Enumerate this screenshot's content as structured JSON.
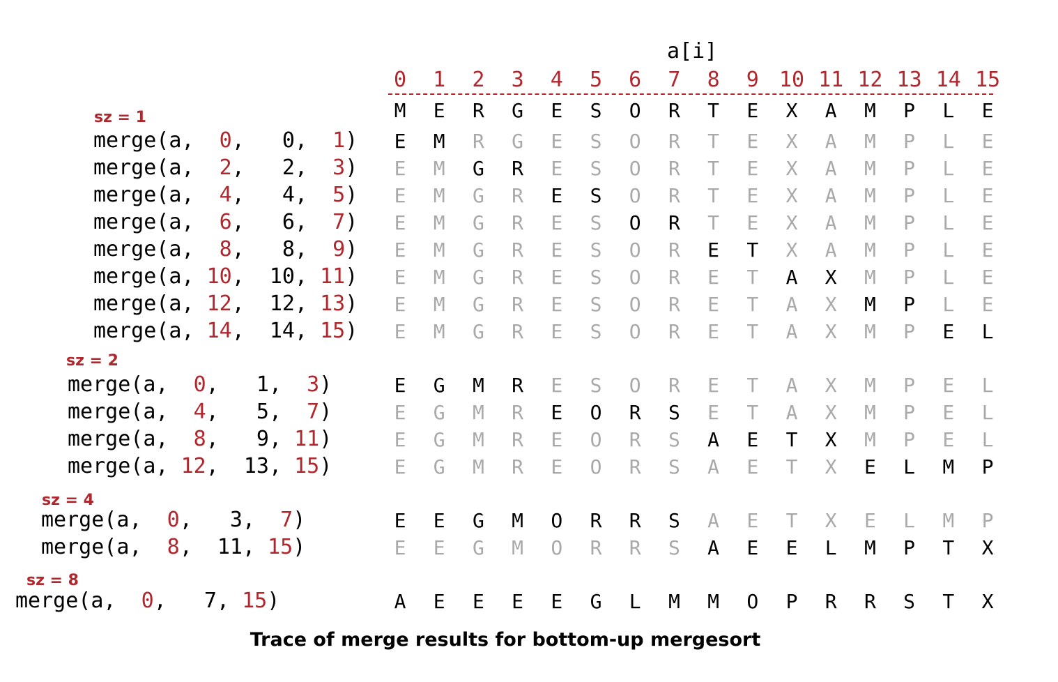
{
  "header": {
    "title": "a[i]",
    "indices": [
      "0",
      "1",
      "2",
      "3",
      "4",
      "5",
      "6",
      "7",
      "8",
      "9",
      "10",
      "11",
      "12",
      "13",
      "14",
      "15"
    ]
  },
  "initial": [
    "M",
    "E",
    "R",
    "G",
    "E",
    "S",
    "O",
    "R",
    "T",
    "E",
    "X",
    "A",
    "M",
    "P",
    "L",
    "E"
  ],
  "groups": [
    {
      "label": "sz = 1",
      "rows": [
        {
          "call": {
            "prefix": "merge(a, ",
            "lo": " 0",
            "mid": "  0",
            "hi": " 1"
          },
          "cells": [
            "E",
            "M",
            "R",
            "G",
            "E",
            "S",
            "O",
            "R",
            "T",
            "E",
            "X",
            "A",
            "M",
            "P",
            "L",
            "E"
          ],
          "active": [
            0,
            1
          ]
        },
        {
          "call": {
            "prefix": "merge(a, ",
            "lo": " 2",
            "mid": "  2",
            "hi": " 3"
          },
          "cells": [
            "E",
            "M",
            "G",
            "R",
            "E",
            "S",
            "O",
            "R",
            "T",
            "E",
            "X",
            "A",
            "M",
            "P",
            "L",
            "E"
          ],
          "active": [
            2,
            3
          ]
        },
        {
          "call": {
            "prefix": "merge(a, ",
            "lo": " 4",
            "mid": "  4",
            "hi": " 5"
          },
          "cells": [
            "E",
            "M",
            "G",
            "R",
            "E",
            "S",
            "O",
            "R",
            "T",
            "E",
            "X",
            "A",
            "M",
            "P",
            "L",
            "E"
          ],
          "active": [
            4,
            5
          ]
        },
        {
          "call": {
            "prefix": "merge(a, ",
            "lo": " 6",
            "mid": "  6",
            "hi": " 7"
          },
          "cells": [
            "E",
            "M",
            "G",
            "R",
            "E",
            "S",
            "O",
            "R",
            "T",
            "E",
            "X",
            "A",
            "M",
            "P",
            "L",
            "E"
          ],
          "active": [
            6,
            7
          ]
        },
        {
          "call": {
            "prefix": "merge(a, ",
            "lo": " 8",
            "mid": "  8",
            "hi": " 9"
          },
          "cells": [
            "E",
            "M",
            "G",
            "R",
            "E",
            "S",
            "O",
            "R",
            "E",
            "T",
            "X",
            "A",
            "M",
            "P",
            "L",
            "E"
          ],
          "active": [
            8,
            9
          ]
        },
        {
          "call": {
            "prefix": "merge(a, ",
            "lo": "10",
            "mid": " 10",
            "hi": "11"
          },
          "cells": [
            "E",
            "M",
            "G",
            "R",
            "E",
            "S",
            "O",
            "R",
            "E",
            "T",
            "A",
            "X",
            "M",
            "P",
            "L",
            "E"
          ],
          "active": [
            10,
            11
          ]
        },
        {
          "call": {
            "prefix": "merge(a, ",
            "lo": "12",
            "mid": " 12",
            "hi": "13"
          },
          "cells": [
            "E",
            "M",
            "G",
            "R",
            "E",
            "S",
            "O",
            "R",
            "E",
            "T",
            "A",
            "X",
            "M",
            "P",
            "L",
            "E"
          ],
          "active": [
            12,
            13
          ]
        },
        {
          "call": {
            "prefix": "merge(a, ",
            "lo": "14",
            "mid": " 14",
            "hi": "15"
          },
          "cells": [
            "E",
            "M",
            "G",
            "R",
            "E",
            "S",
            "O",
            "R",
            "E",
            "T",
            "A",
            "X",
            "M",
            "P",
            "E",
            "L"
          ],
          "active": [
            14,
            15
          ]
        }
      ]
    },
    {
      "label": "sz = 2",
      "rows": [
        {
          "call": {
            "prefix": "merge(a, ",
            "lo": " 0",
            "mid": "  1",
            "hi": " 3"
          },
          "cells": [
            "E",
            "G",
            "M",
            "R",
            "E",
            "S",
            "O",
            "R",
            "E",
            "T",
            "A",
            "X",
            "M",
            "P",
            "E",
            "L"
          ],
          "active": [
            0,
            1,
            2,
            3
          ]
        },
        {
          "call": {
            "prefix": "merge(a, ",
            "lo": " 4",
            "mid": "  5",
            "hi": " 7"
          },
          "cells": [
            "E",
            "G",
            "M",
            "R",
            "E",
            "O",
            "R",
            "S",
            "E",
            "T",
            "A",
            "X",
            "M",
            "P",
            "E",
            "L"
          ],
          "active": [
            4,
            5,
            6,
            7
          ]
        },
        {
          "call": {
            "prefix": "merge(a, ",
            "lo": " 8",
            "mid": "  9",
            "hi": "11"
          },
          "cells": [
            "E",
            "G",
            "M",
            "R",
            "E",
            "O",
            "R",
            "S",
            "A",
            "E",
            "T",
            "X",
            "M",
            "P",
            "E",
            "L"
          ],
          "active": [
            8,
            9,
            10,
            11
          ]
        },
        {
          "call": {
            "prefix": "merge(a, ",
            "lo": "12",
            "mid": " 13",
            "hi": "15"
          },
          "cells": [
            "E",
            "G",
            "M",
            "R",
            "E",
            "O",
            "R",
            "S",
            "A",
            "E",
            "T",
            "X",
            "E",
            "L",
            "M",
            "P"
          ],
          "active": [
            12,
            13,
            14,
            15
          ]
        }
      ]
    },
    {
      "label": "sz = 4",
      "rows": [
        {
          "call": {
            "prefix": "merge(a, ",
            "lo": " 0",
            "mid": "  3",
            "hi": " 7"
          },
          "cells": [
            "E",
            "E",
            "G",
            "M",
            "O",
            "R",
            "R",
            "S",
            "A",
            "E",
            "T",
            "X",
            "E",
            "L",
            "M",
            "P"
          ],
          "active": [
            0,
            1,
            2,
            3,
            4,
            5,
            6,
            7
          ]
        },
        {
          "call": {
            "prefix": "merge(a, ",
            "lo": " 8",
            "mid": " 11",
            "hi": "15"
          },
          "cells": [
            "E",
            "E",
            "G",
            "M",
            "O",
            "R",
            "R",
            "S",
            "A",
            "E",
            "E",
            "L",
            "M",
            "P",
            "T",
            "X"
          ],
          "active": [
            8,
            9,
            10,
            11,
            12,
            13,
            14,
            15
          ]
        }
      ]
    },
    {
      "label": "sz = 8",
      "rows": [
        {
          "call": {
            "prefix": "merge(a, ",
            "lo": " 0",
            "mid": "  7",
            "hi": "15"
          },
          "cells": [
            "A",
            "E",
            "E",
            "E",
            "E",
            "G",
            "L",
            "M",
            "M",
            "O",
            "P",
            "R",
            "R",
            "S",
            "T",
            "X"
          ],
          "active": [
            0,
            1,
            2,
            3,
            4,
            5,
            6,
            7,
            8,
            9,
            10,
            11,
            12,
            13,
            14,
            15
          ]
        }
      ]
    }
  ],
  "caption": "Trace of merge results for bottom-up mergesort",
  "colors": {
    "accent": "#b0272d",
    "inactive": "#a9a9a9",
    "text": "#000000"
  }
}
